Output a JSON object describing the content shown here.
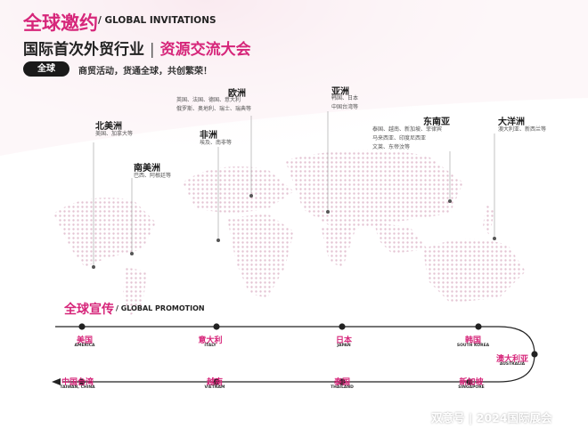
{
  "header": {
    "title_cn": "全球邀约",
    "title_en": "/ GLOBAL INVITATIONS",
    "subtitle_left": "国际首次外贸行业",
    "subtitle_sep": "|",
    "subtitle_right": "资源交流大会",
    "pill_label": "全球",
    "tagline": "商贸活动，货通全球，共创繁荣！"
  },
  "regions": {
    "north_america": {
      "name": "北美洲",
      "list": "美国、加拿大等"
    },
    "south_america": {
      "name": "南美洲",
      "list": "巴西、阿根廷等"
    },
    "europe": {
      "name": "欧洲",
      "list": "英国、法国、德国、意大利\n俄罗斯、奥地利、瑞士、瑞典等"
    },
    "africa": {
      "name": "非洲",
      "list": "埃及、南非等"
    },
    "asia": {
      "name": "亚洲",
      "list": "韩国、日本\n中国台湾等"
    },
    "southeast_asia": {
      "name": "东南亚",
      "list": "泰国、越南、新加坡、菲律宾\n马来西亚、印度尼西亚\n文莱、东帝汶等"
    },
    "oceania": {
      "name": "大洋洲",
      "list": "澳大利亚、新西兰等"
    }
  },
  "promotion": {
    "title_cn": "全球宣传",
    "title_en": "/ GLOBAL PROMOTION",
    "stops": [
      {
        "cn": "美国",
        "en": "AMERICA"
      },
      {
        "cn": "意大利",
        "en": "ITALY"
      },
      {
        "cn": "日本",
        "en": "JAPAN"
      },
      {
        "cn": "韩国",
        "en": "SOUTH KOREA"
      },
      {
        "cn": "澳大利亚",
        "en": "AUSTRALIA"
      },
      {
        "cn": "新加坡",
        "en": "SINGAPORE"
      },
      {
        "cn": "泰国",
        "en": "THAILAND"
      },
      {
        "cn": "越南",
        "en": "VIETNAM"
      },
      {
        "cn": "中国台湾",
        "en": "TAIWAN, CHINA"
      }
    ]
  },
  "watermark": "双意号 | 2024国际展会",
  "colors": {
    "accent": "#d6267a",
    "dark": "#1a1a1a",
    "map_dots": "#e2c6d3"
  }
}
